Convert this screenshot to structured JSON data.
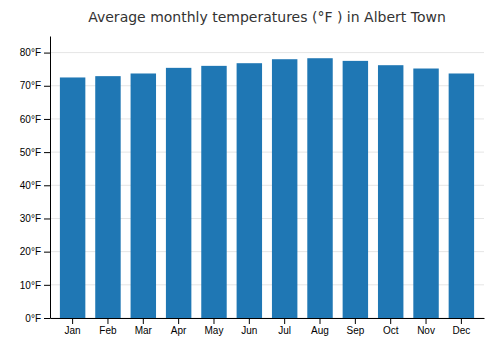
{
  "chart_data": {
    "type": "bar",
    "title": "Average monthly temperatures (°F ) in Albert Town",
    "categories": [
      "Jan",
      "Feb",
      "Mar",
      "Apr",
      "May",
      "Jun",
      "Jul",
      "Aug",
      "Sep",
      "Oct",
      "Nov",
      "Dec"
    ],
    "values": [
      72.5,
      72.9,
      73.7,
      75.4,
      76.0,
      76.8,
      78.0,
      78.3,
      77.5,
      76.2,
      75.2,
      73.7
    ],
    "ylim": [
      0,
      85
    ],
    "yticks": [
      {
        "value": 0,
        "label": "0°F"
      },
      {
        "value": 10,
        "label": "10°F"
      },
      {
        "value": 20,
        "label": "20°F"
      },
      {
        "value": 30,
        "label": "30°F"
      },
      {
        "value": 40,
        "label": "40°F"
      },
      {
        "value": 50,
        "label": "50°F"
      },
      {
        "value": 60,
        "label": "60°F"
      },
      {
        "value": 70,
        "label": "70°F"
      },
      {
        "value": 80,
        "label": "80°F"
      }
    ],
    "grid": true
  }
}
